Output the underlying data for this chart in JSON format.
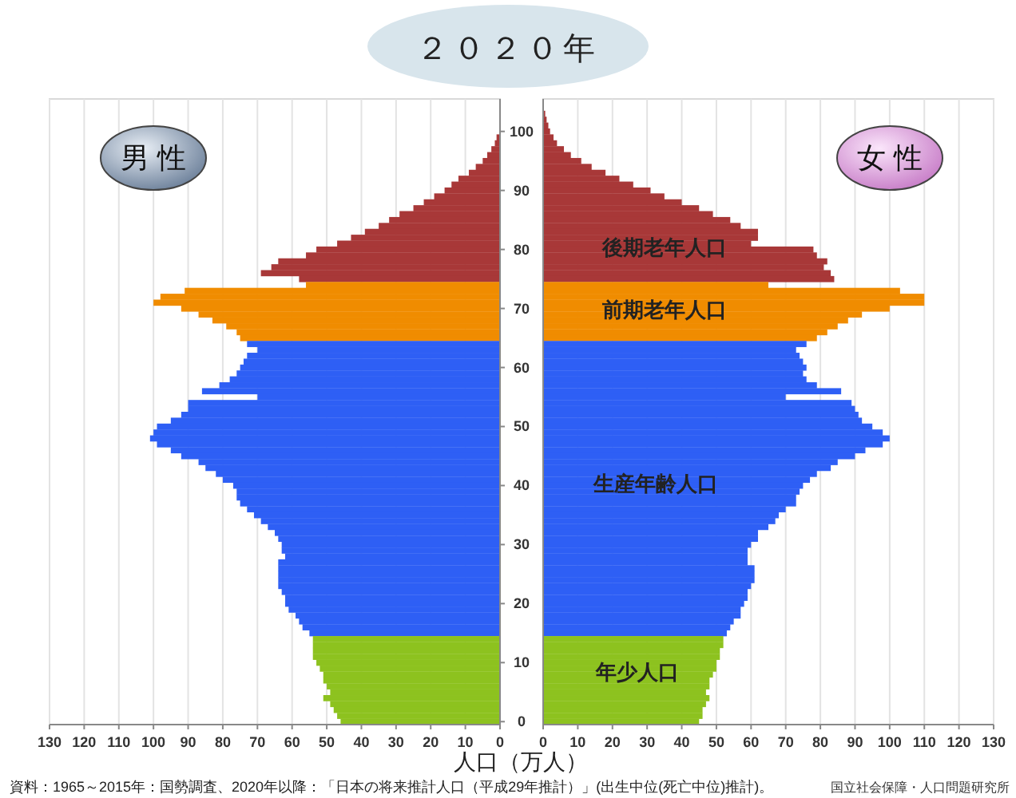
{
  "chart_data": [
    {
      "type": "bar",
      "orientation": "horizontal",
      "title": "２０２０年",
      "xlabel": "人口（万人）",
      "categories": [
        null,
        null,
        null,
        null,
        "100",
        null,
        null,
        null,
        null,
        null,
        null,
        null,
        null,
        null,
        "90",
        null,
        null,
        null,
        null,
        null,
        null,
        null,
        null,
        null,
        "80",
        null,
        null,
        null,
        null,
        null,
        null,
        null,
        null,
        null,
        "70",
        null,
        null,
        null,
        null,
        null,
        null,
        null,
        null,
        null,
        "60",
        null,
        null,
        null,
        null,
        null,
        null,
        null,
        null,
        null,
        "50",
        null,
        null,
        null,
        null,
        null,
        null,
        null,
        null,
        null,
        "40",
        null,
        null,
        null,
        null,
        null,
        null,
        null,
        null,
        null,
        "30",
        null,
        null,
        null,
        null,
        null,
        null,
        null,
        null,
        null,
        "20",
        null,
        null,
        null,
        null,
        null,
        null,
        null,
        null,
        null,
        "10",
        null,
        null,
        null,
        null,
        null,
        null,
        null,
        null,
        null,
        "0"
      ],
      "values": [
        null,
        null,
        null,
        null,
        null,
        1,
        1.5,
        2.5,
        3.7,
        5,
        7,
        9,
        12,
        14,
        16,
        19,
        22,
        25,
        29,
        32,
        35,
        39,
        43,
        47,
        53,
        56,
        64,
        66,
        69,
        58,
        56,
        91,
        98,
        100,
        92,
        87,
        83,
        79,
        76,
        75,
        73,
        70,
        73,
        74,
        75,
        76,
        78,
        81,
        86,
        70,
        90,
        90,
        92,
        95,
        99,
        100,
        101,
        99,
        95,
        92,
        87,
        85,
        82,
        80,
        77,
        76,
        76,
        75,
        73,
        71,
        69,
        67,
        65,
        64,
        63,
        63,
        62,
        64,
        64,
        64,
        64,
        64,
        63,
        62,
        62,
        61,
        59,
        58,
        57,
        55,
        54,
        54,
        54,
        54,
        53,
        52,
        51,
        51,
        50,
        49,
        51,
        49,
        48,
        47,
        46
      ],
      "colors": [
        null,
        null,
        null,
        null,
        null,
        "#a83838",
        "#a83838",
        "#a83838",
        "#a83838",
        "#a83838",
        "#a83838",
        "#a83838",
        "#a83838",
        "#a83838",
        "#a83838",
        "#a83838",
        "#a83838",
        "#a83838",
        "#a83838",
        "#a83838",
        "#a83838",
        "#a83838",
        "#a83838",
        "#a83838",
        "#a83838",
        "#a83838",
        "#a83838",
        "#a83838",
        "#a83838",
        "#a83838",
        "#f08c00",
        "#f08c00",
        "#f08c00",
        "#f08c00",
        "#f08c00",
        "#f08c00",
        "#f08c00",
        "#f08c00",
        "#f08c00",
        "#f08c00",
        "#2e5ff5",
        "#2e5ff5",
        "#2e5ff5",
        "#2e5ff5",
        "#2e5ff5",
        "#2e5ff5",
        "#2e5ff5",
        "#2e5ff5",
        "#2e5ff5",
        "#2e5ff5",
        "#2e5ff5",
        "#2e5ff5",
        "#2e5ff5",
        "#2e5ff5",
        "#2e5ff5",
        "#2e5ff5",
        "#2e5ff5",
        "#2e5ff5",
        "#2e5ff5",
        "#2e5ff5",
        "#2e5ff5",
        "#2e5ff5",
        "#2e5ff5",
        "#2e5ff5",
        "#2e5ff5",
        "#2e5ff5",
        "#2e5ff5",
        "#2e5ff5",
        "#2e5ff5",
        "#2e5ff5",
        "#2e5ff5",
        "#2e5ff5",
        "#2e5ff5",
        "#2e5ff5",
        "#2e5ff5",
        "#2e5ff5",
        "#2e5ff5",
        "#2e5ff5",
        "#2e5ff5",
        "#2e5ff5",
        "#2e5ff5",
        "#2e5ff5",
        "#2e5ff5",
        "#2e5ff5",
        "#2e5ff5",
        "#2e5ff5",
        "#2e5ff5",
        "#2e5ff5",
        "#2e5ff5",
        "#2e5ff5",
        "#8dc21f",
        "#8dc21f",
        "#8dc21f",
        "#8dc21f",
        "#8dc21f",
        "#8dc21f",
        "#8dc21f",
        "#8dc21f",
        "#8dc21f",
        "#8dc21f",
        "#8dc21f",
        "#8dc21f",
        "#8dc21f",
        "#8dc21f",
        "#8dc21f"
      ],
      "xlim": [
        130,
        0
      ],
      "xticks": [
        130,
        120,
        110,
        100,
        90,
        80,
        70,
        60,
        50,
        40,
        30,
        20,
        10,
        0
      ],
      "grid": "x",
      "annotations": [
        "男 性",
        "資料：1965～2015年：国勢調査、2020年以降：「日本の将来推計人口（平成29年推計）」(出生中位(死亡中位)推計)。",
        "国立社会保障・人口問題研究所"
      ]
    },
    {
      "type": "bar",
      "orientation": "horizontal",
      "categories": [
        null,
        null,
        null,
        null,
        null,
        null,
        null,
        null,
        null,
        null,
        null,
        null,
        null,
        null,
        null,
        null,
        null,
        null,
        null,
        null,
        null,
        null,
        null,
        null,
        null,
        null,
        null,
        null,
        null,
        null,
        null,
        null,
        null,
        null,
        null,
        null,
        null,
        null,
        null,
        null,
        null,
        null,
        null,
        null,
        null,
        null,
        null,
        null,
        null,
        null,
        null,
        null,
        null,
        null,
        null,
        null,
        null,
        null,
        null,
        null,
        null,
        null,
        null,
        null,
        null,
        null,
        null,
        null,
        null,
        null,
        null,
        null,
        null,
        null,
        null,
        null,
        null,
        null,
        null,
        null,
        null,
        null,
        null,
        null,
        null,
        null,
        null,
        null,
        null,
        null,
        null,
        null,
        null,
        null,
        null,
        null,
        null,
        null,
        null,
        null,
        null,
        null,
        null,
        null,
        null
      ],
      "values": [
        null,
        0.6,
        1,
        1.5,
        2,
        3,
        4,
        6,
        8,
        11,
        14,
        18,
        22,
        26,
        31,
        35,
        40,
        45,
        49,
        54,
        57,
        62,
        62,
        60,
        78,
        79,
        82,
        81,
        83,
        84,
        65,
        103,
        110,
        110,
        100,
        92,
        88,
        85,
        82,
        79,
        76,
        73,
        74,
        75,
        76,
        75,
        76,
        79,
        86,
        70,
        89,
        90,
        91,
        92,
        95,
        98,
        100,
        98,
        93,
        90,
        85,
        83,
        79,
        77,
        75,
        74,
        73,
        73,
        70,
        68,
        67,
        65,
        62,
        62,
        60,
        59,
        59,
        59,
        61,
        61,
        61,
        60,
        59,
        59,
        58,
        57,
        57,
        55,
        54,
        53,
        52,
        52,
        51,
        51,
        50,
        50,
        49,
        48,
        48,
        47,
        48,
        47,
        46,
        46,
        45
      ],
      "colors": [
        null,
        "#a83838",
        "#a83838",
        "#a83838",
        "#a83838",
        "#a83838",
        "#a83838",
        "#a83838",
        "#a83838",
        "#a83838",
        "#a83838",
        "#a83838",
        "#a83838",
        "#a83838",
        "#a83838",
        "#a83838",
        "#a83838",
        "#a83838",
        "#a83838",
        "#a83838",
        "#a83838",
        "#a83838",
        "#a83838",
        "#a83838",
        "#a83838",
        "#a83838",
        "#a83838",
        "#a83838",
        "#a83838",
        "#a83838",
        "#f08c00",
        "#f08c00",
        "#f08c00",
        "#f08c00",
        "#f08c00",
        "#f08c00",
        "#f08c00",
        "#f08c00",
        "#f08c00",
        "#f08c00",
        "#2e5ff5",
        "#2e5ff5",
        "#2e5ff5",
        "#2e5ff5",
        "#2e5ff5",
        "#2e5ff5",
        "#2e5ff5",
        "#2e5ff5",
        "#2e5ff5",
        "#2e5ff5",
        "#2e5ff5",
        "#2e5ff5",
        "#2e5ff5",
        "#2e5ff5",
        "#2e5ff5",
        "#2e5ff5",
        "#2e5ff5",
        "#2e5ff5",
        "#2e5ff5",
        "#2e5ff5",
        "#2e5ff5",
        "#2e5ff5",
        "#2e5ff5",
        "#2e5ff5",
        "#2e5ff5",
        "#2e5ff5",
        "#2e5ff5",
        "#2e5ff5",
        "#2e5ff5",
        "#2e5ff5",
        "#2e5ff5",
        "#2e5ff5",
        "#2e5ff5",
        "#2e5ff5",
        "#2e5ff5",
        "#2e5ff5",
        "#2e5ff5",
        "#2e5ff5",
        "#2e5ff5",
        "#2e5ff5",
        "#2e5ff5",
        "#2e5ff5",
        "#2e5ff5",
        "#2e5ff5",
        "#2e5ff5",
        "#2e5ff5",
        "#2e5ff5",
        "#2e5ff5",
        "#2e5ff5",
        "#2e5ff5",
        "#8dc21f",
        "#8dc21f",
        "#8dc21f",
        "#8dc21f",
        "#8dc21f",
        "#8dc21f",
        "#8dc21f",
        "#8dc21f",
        "#8dc21f",
        "#8dc21f",
        "#8dc21f",
        "#8dc21f",
        "#8dc21f",
        "#8dc21f",
        "#8dc21f"
      ],
      "xlim": [
        0,
        130
      ],
      "xticks": [
        0,
        10,
        20,
        30,
        40,
        50,
        60,
        70,
        80,
        90,
        100,
        110,
        120,
        130
      ],
      "grid": "x",
      "tick_labels": "x",
      "annotations": [
        "女 性",
        "後期老年人口",
        "前期老年人口",
        "生産年齢人口",
        "年少人口"
      ]
    }
  ]
}
